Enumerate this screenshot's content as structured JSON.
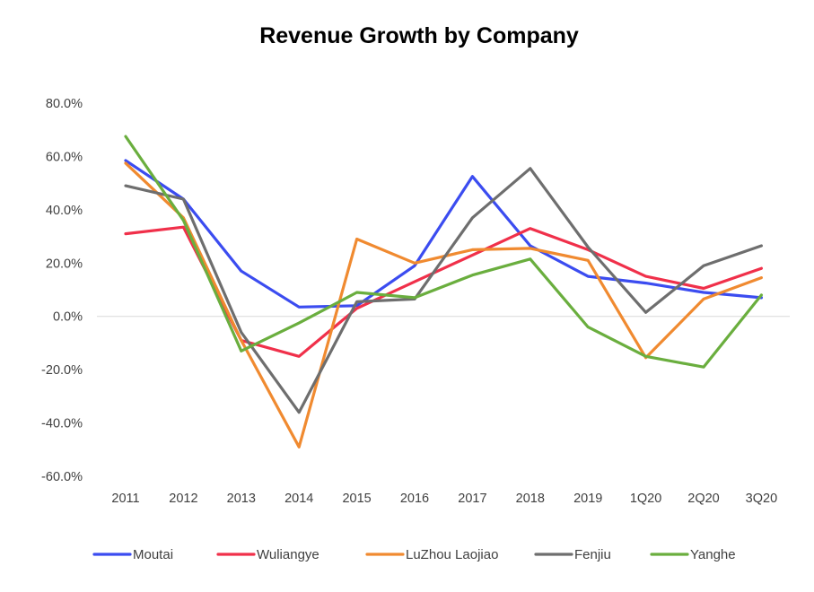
{
  "chart_data": {
    "type": "line",
    "title": "Revenue Growth by Company",
    "xlabel": "",
    "ylabel": "",
    "categories": [
      "2011",
      "2012",
      "2013",
      "2014",
      "2015",
      "2016",
      "2017",
      "2018",
      "2019",
      "1Q20",
      "2Q20",
      "3Q20"
    ],
    "ylim": [
      -0.6,
      0.8
    ],
    "yticks": [
      0.8,
      0.6,
      0.4,
      0.2,
      0.0,
      -0.2,
      -0.4,
      -0.6
    ],
    "ytick_labels": [
      "80.0%",
      "60.0%",
      "40.0%",
      "20.0%",
      "0.0%",
      "-20.0%",
      "-40.0%",
      "-60.0%"
    ],
    "grid": false,
    "legend": "bottom",
    "series": [
      {
        "name": "Moutai",
        "color": "#3B4CF0",
        "values": [
          0.585,
          0.44,
          0.17,
          0.035,
          0.04,
          0.19,
          0.525,
          0.265,
          0.15,
          0.125,
          0.09,
          0.07
        ]
      },
      {
        "name": "Wuliangye",
        "color": "#F0304A",
        "values": [
          0.31,
          0.335,
          -0.09,
          -0.15,
          0.03,
          0.13,
          0.23,
          0.33,
          0.25,
          0.15,
          0.105,
          0.18
        ]
      },
      {
        "name": "LuZhou Laojiao",
        "color": "#F08A30",
        "values": [
          0.575,
          0.37,
          -0.09,
          -0.49,
          0.29,
          0.2,
          0.25,
          0.255,
          0.21,
          -0.155,
          0.065,
          0.145
        ]
      },
      {
        "name": "Fenjiu",
        "color": "#6E6E6E",
        "values": [
          0.49,
          0.44,
          -0.06,
          -0.36,
          0.055,
          0.065,
          0.37,
          0.555,
          0.26,
          0.015,
          0.19,
          0.265
        ]
      },
      {
        "name": "Yanghe",
        "color": "#6AAE3E",
        "values": [
          0.675,
          0.36,
          -0.13,
          -0.025,
          0.09,
          0.07,
          0.155,
          0.215,
          -0.04,
          -0.15,
          -0.19,
          0.08
        ]
      }
    ]
  }
}
